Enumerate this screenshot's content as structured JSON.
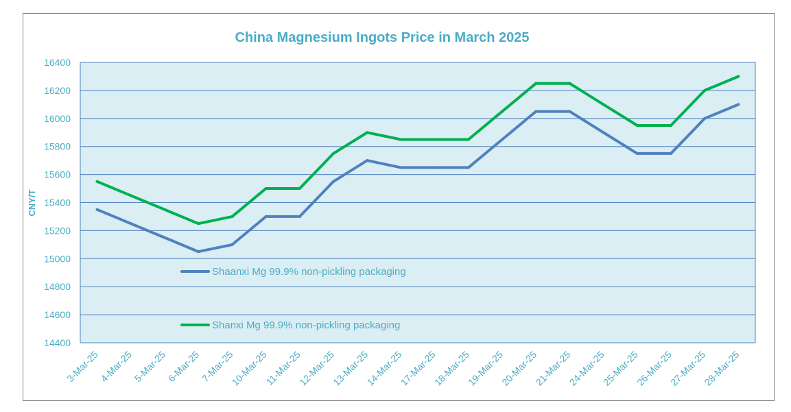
{
  "chart_data": {
    "type": "line",
    "title": "China Magnesium Ingots Price in March 2025",
    "xlabel": "",
    "ylabel": "CNY/T",
    "ylim": [
      14400,
      16400
    ],
    "yticks": [
      14400,
      14600,
      14800,
      15000,
      15200,
      15400,
      15600,
      15800,
      16000,
      16200,
      16400
    ],
    "grid": true,
    "legend_position": "inside-bottom-left",
    "categories": [
      "3-Mar-25",
      "4-Mar-25",
      "5-Mar-25",
      "6-Mar-25",
      "7-Mar-25",
      "10-Mar-25",
      "11-Mar-25",
      "12-Mar-25",
      "13-Mar-25",
      "14-Mar-25",
      "17-Mar-25",
      "18-Mar-25",
      "19-Mar-25",
      "20-Mar-25",
      "21-Mar-25",
      "24-Mar-25",
      "25-Mar-25",
      "26-Mar-25",
      "27-Mar-25",
      "28-Mar-25"
    ],
    "series": [
      {
        "name": "Shaanxi Mg 99.9% non-pickling packaging",
        "color": "#4f81bd",
        "values": [
          15350,
          15250,
          15150,
          15050,
          15100,
          15300,
          15300,
          15550,
          15700,
          15650,
          15650,
          15650,
          15850,
          16050,
          16050,
          15900,
          15750,
          15750,
          16000,
          16100
        ]
      },
      {
        "name": "Shanxi Mg 99.9% non-pickling packaging",
        "color": "#00b050",
        "values": [
          15550,
          15450,
          15350,
          15250,
          15300,
          15500,
          15500,
          15750,
          15900,
          15850,
          15850,
          15850,
          16050,
          16250,
          16250,
          16100,
          15950,
          15950,
          16200,
          16300
        ]
      }
    ],
    "colors": {
      "plot_background": "#daeef3",
      "gridline": "#4f81bd",
      "text": "#4bacc6",
      "frame_border": "#7f7f7f"
    }
  }
}
